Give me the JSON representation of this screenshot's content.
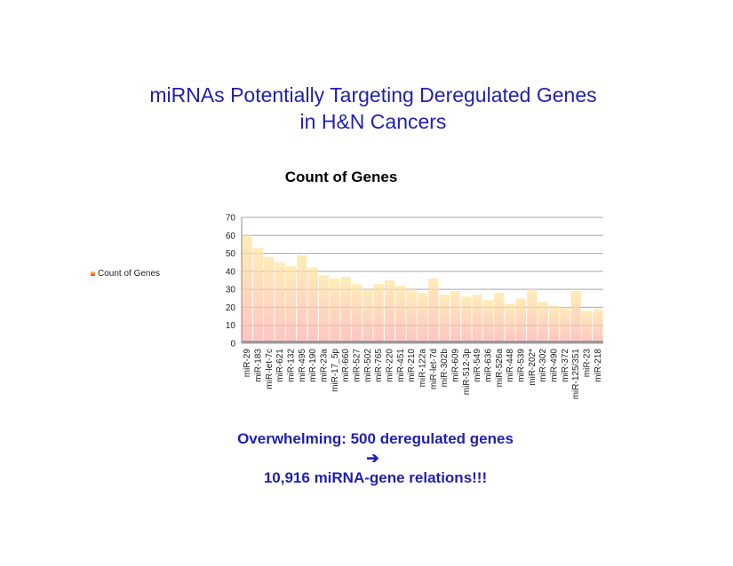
{
  "slide": {
    "title_line1": "miRNAs Potentially Targeting Deregulated Genes",
    "title_line2": "in H&N Cancers"
  },
  "footer": {
    "line1": "Overwhelming: 500 deregulated genes",
    "arrow": "➔",
    "line2": "10,916 miRNA-gene relations!!!"
  },
  "colors": {
    "title": "#1f1fb4",
    "bar_top": "#ffe08a",
    "bar_bottom": "#ff9a9a"
  },
  "chart_data": {
    "type": "bar",
    "title": "Count of Genes",
    "legend": {
      "label": "Count of Genes",
      "position": "left"
    },
    "ylim": [
      0,
      70
    ],
    "yticks": [
      0,
      10,
      20,
      30,
      40,
      50,
      60,
      70
    ],
    "grid": true,
    "categories": [
      "miR-29",
      "miR-183",
      "miR-let-7c",
      "miR-621",
      "miR-132",
      "miR-495",
      "miR-190",
      "miR-23a",
      "miR-17_5p",
      "miR-660",
      "miR-527",
      "miR-502",
      "miR-765",
      "miR-220",
      "miR-451",
      "miR-210",
      "miR-122a",
      "miR-let-7d",
      "miR-302b",
      "miR-609",
      "miR-512-3p",
      "miR-549",
      "miR-636",
      "miR-526a",
      "miR-448",
      "miR-539",
      "miR-202*",
      "miR-302",
      "miR-490",
      "miR-372",
      "miR-125/351",
      "miR-23",
      "miR-218"
    ],
    "series": [
      {
        "values": [
          60,
          53,
          48,
          45,
          43,
          49,
          42,
          38,
          36,
          37,
          33,
          30,
          33,
          35,
          32,
          30,
          28,
          36,
          27,
          29,
          26,
          27,
          24,
          28,
          22,
          25,
          30,
          23,
          21,
          20,
          29,
          18,
          19
        ]
      }
    ]
  }
}
